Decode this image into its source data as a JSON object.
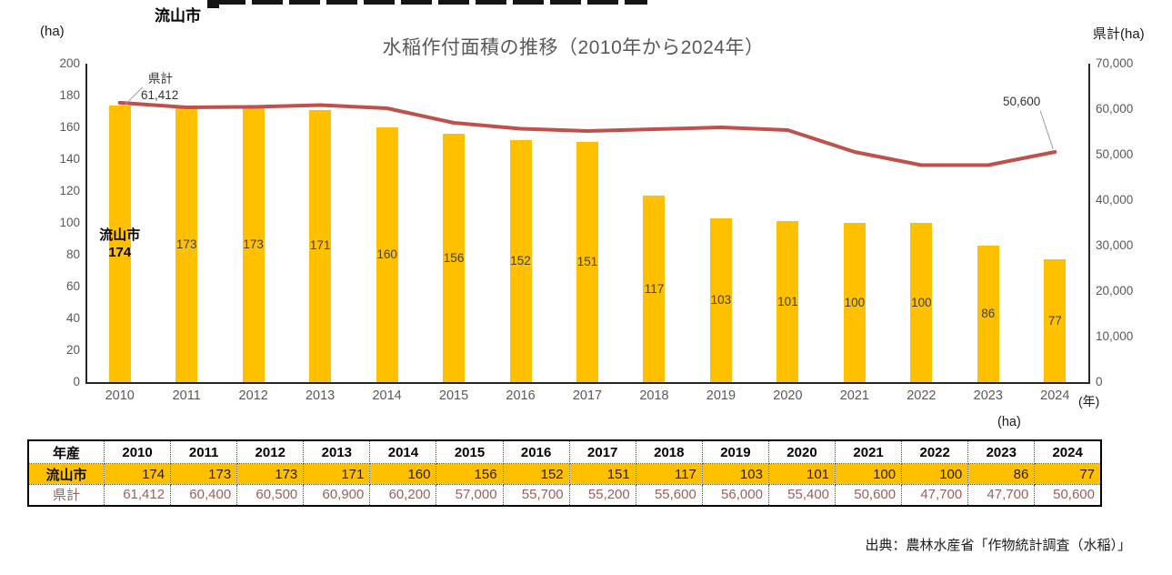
{
  "page": {
    "region_title": "流山市",
    "chart_title": "水稲作付面積の推移（2010年から2024年）",
    "left_axis_unit": "(ha)",
    "right_axis_unit": "県計(ha)",
    "x_axis_unit": "(年)",
    "table_unit": "(ha)",
    "source": "出典：農林水産省「作物統計調査（水稲）」"
  },
  "chart_data": {
    "type": "bar+line combo",
    "categories": [
      "2010",
      "2011",
      "2012",
      "2013",
      "2014",
      "2015",
      "2016",
      "2017",
      "2018",
      "2019",
      "2020",
      "2021",
      "2022",
      "2023",
      "2024"
    ],
    "series": [
      {
        "name": "流山市",
        "type": "bar",
        "axis": "left",
        "color": "#FFC000",
        "values": [
          174,
          173,
          173,
          171,
          160,
          156,
          152,
          151,
          117,
          103,
          101,
          100,
          100,
          86,
          77
        ]
      },
      {
        "name": "県計",
        "type": "line",
        "axis": "right",
        "color": "#BE514B",
        "values": [
          61412,
          60400,
          60500,
          60900,
          60200,
          57000,
          55700,
          55200,
          55600,
          56000,
          55400,
          50600,
          47700,
          47700,
          50600
        ]
      }
    ],
    "left_axis": {
      "label": "(ha)",
      "min": 0,
      "max": 200,
      "ticks": [
        "0",
        "20",
        "40",
        "60",
        "80",
        "100",
        "120",
        "140",
        "160",
        "180",
        "200"
      ]
    },
    "right_axis": {
      "label": "県計(ha)",
      "min": 0,
      "max": 70000,
      "ticks": [
        "0",
        "10,000",
        "20,000",
        "30,000",
        "40,000",
        "50,000",
        "60,000",
        "70,000"
      ]
    },
    "annotations": {
      "line_start_label": "県計",
      "line_start_value": "61,412",
      "line_end_value": "50,600",
      "first_bar_label": "流山市",
      "first_bar_value": "174"
    },
    "grid": false,
    "legend": "none"
  },
  "table": {
    "header": [
      "年産",
      "2010",
      "2011",
      "2012",
      "2013",
      "2014",
      "2015",
      "2016",
      "2017",
      "2018",
      "2019",
      "2020",
      "2021",
      "2022",
      "2023",
      "2024"
    ],
    "rows": [
      {
        "label": "流山市",
        "values": [
          "174",
          "173",
          "173",
          "171",
          "160",
          "156",
          "152",
          "151",
          "117",
          "103",
          "101",
          "100",
          "100",
          "86",
          "77"
        ]
      },
      {
        "label": "県計",
        "values": [
          "61,412",
          "60,400",
          "60,500",
          "60,900",
          "60,200",
          "57,000",
          "55,700",
          "55,200",
          "55,600",
          "56,000",
          "55,400",
          "50,600",
          "47,700",
          "47,700",
          "50,600"
        ]
      }
    ]
  },
  "colors": {
    "bar": "#FFC000",
    "line": "#BE514B",
    "axis_text": "#595959",
    "title_text": "#595959",
    "pref_table_text": "#9B605E"
  }
}
